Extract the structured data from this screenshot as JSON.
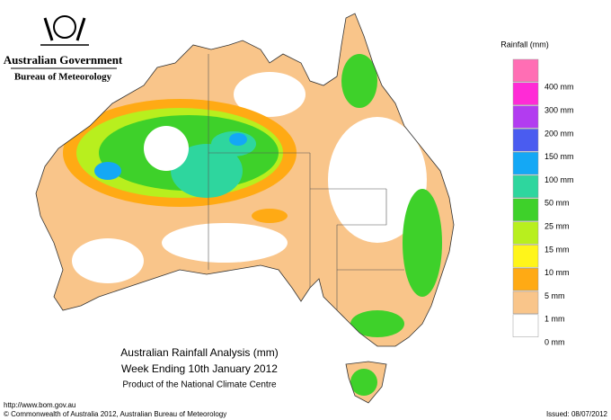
{
  "header": {
    "government": "Australian Government",
    "agency": "Bureau of Meteorology"
  },
  "title": {
    "line1": "Australian Rainfall Analysis (mm)",
    "line2": "Week Ending 10th January 2012",
    "line3": "Product of the National Climate Centre"
  },
  "legend": {
    "title": "Rainfall (mm)",
    "colors": [
      "#ff6eb4",
      "#ff2bd6",
      "#b23cf0",
      "#4a5cf0",
      "#14a8f5",
      "#2ed69e",
      "#3ed12a",
      "#b8ef1e",
      "#fff51a",
      "#ffaa14",
      "#f9c58a",
      "#ffffff"
    ],
    "labels": [
      "400 mm",
      "300 mm",
      "200 mm",
      "150 mm",
      "100 mm",
      "50 mm",
      "25 mm",
      "15 mm",
      "10 mm",
      "5 mm",
      "1 mm",
      "0 mm"
    ]
  },
  "footer": {
    "url": "http://www.bom.gov.au",
    "copyright": "© Commonwealth of Australia 2012, Australian Bureau of Meteorology",
    "issued": "Issued: 08/07/2012"
  }
}
